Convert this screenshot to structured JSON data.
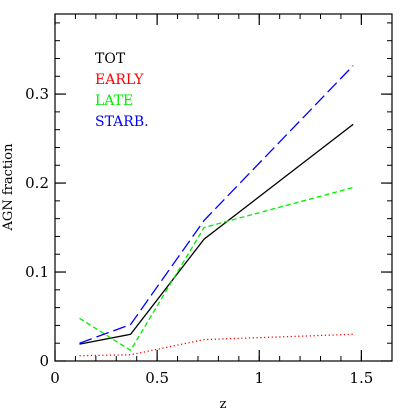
{
  "chart_data": {
    "type": "line",
    "title": "",
    "xlabel": "z",
    "ylabel": "AGN fraction",
    "xlim": [
      0,
      1.65
    ],
    "ylim": [
      0,
      0.39
    ],
    "grid": false,
    "legend_position": "top-left",
    "x_ticks": [
      0,
      0.5,
      1,
      1.5
    ],
    "x_tick_labels": [
      "0",
      "0.5",
      "1",
      "1.5"
    ],
    "y_ticks": [
      0,
      0.1,
      0.2,
      0.3
    ],
    "y_tick_labels": [
      "0",
      "0.1",
      "0.2",
      "0.3"
    ],
    "x_minor_step": 0.1,
    "y_minor_step": 0.02,
    "series": [
      {
        "name": "TOT",
        "color": "#000000",
        "style": "solid",
        "x": [
          0.12,
          0.37,
          0.73,
          1.46
        ],
        "y": [
          0.019,
          0.03,
          0.137,
          0.266
        ]
      },
      {
        "name": "EARLY",
        "color": "#ff0000",
        "style": "dotted",
        "x": [
          0.12,
          0.37,
          0.73,
          1.46
        ],
        "y": [
          0.006,
          0.007,
          0.024,
          0.03
        ]
      },
      {
        "name": "LATE",
        "color": "#00ee00",
        "style": "short-dashed",
        "x": [
          0.12,
          0.37,
          0.73,
          1.46
        ],
        "y": [
          0.048,
          0.012,
          0.15,
          0.195
        ]
      },
      {
        "name": "STARB.",
        "color": "#0000ff",
        "style": "long-dashed",
        "x": [
          0.12,
          0.37,
          0.73,
          1.46
        ],
        "y": [
          0.02,
          0.041,
          0.158,
          0.332
        ]
      }
    ]
  }
}
